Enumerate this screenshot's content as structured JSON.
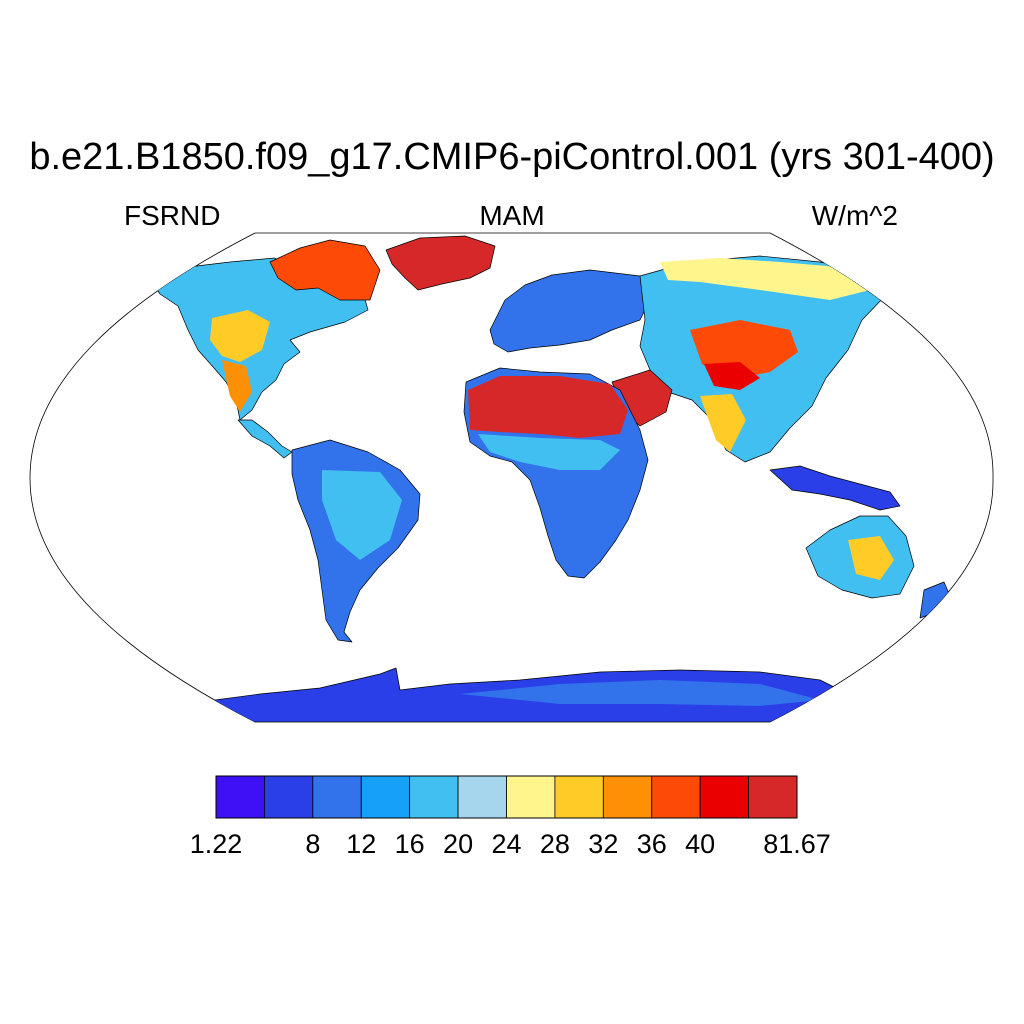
{
  "title": "b.e21.B1850.f09_g17.CMIP6-piControl.001 (yrs 301-400)",
  "left_label": "FSRND",
  "center_label": "MAM",
  "right_label": "W/m^2",
  "colorbar": {
    "colors": [
      "#3d10f5",
      "#2b3fe8",
      "#3273ec",
      "#17a0f7",
      "#41bff0",
      "#a6d6ee",
      "#fff58d",
      "#fecb27",
      "#fe9006",
      "#fd4a06",
      "#eb0000",
      "#d62828"
    ],
    "tick_labels": [
      "1.22",
      "8",
      "12",
      "16",
      "20",
      "24",
      "28",
      "32",
      "36",
      "40",
      "81.67"
    ],
    "tick_boundaries": [
      0,
      2,
      3,
      4,
      5,
      6,
      7,
      8,
      9,
      10,
      12
    ]
  }
}
